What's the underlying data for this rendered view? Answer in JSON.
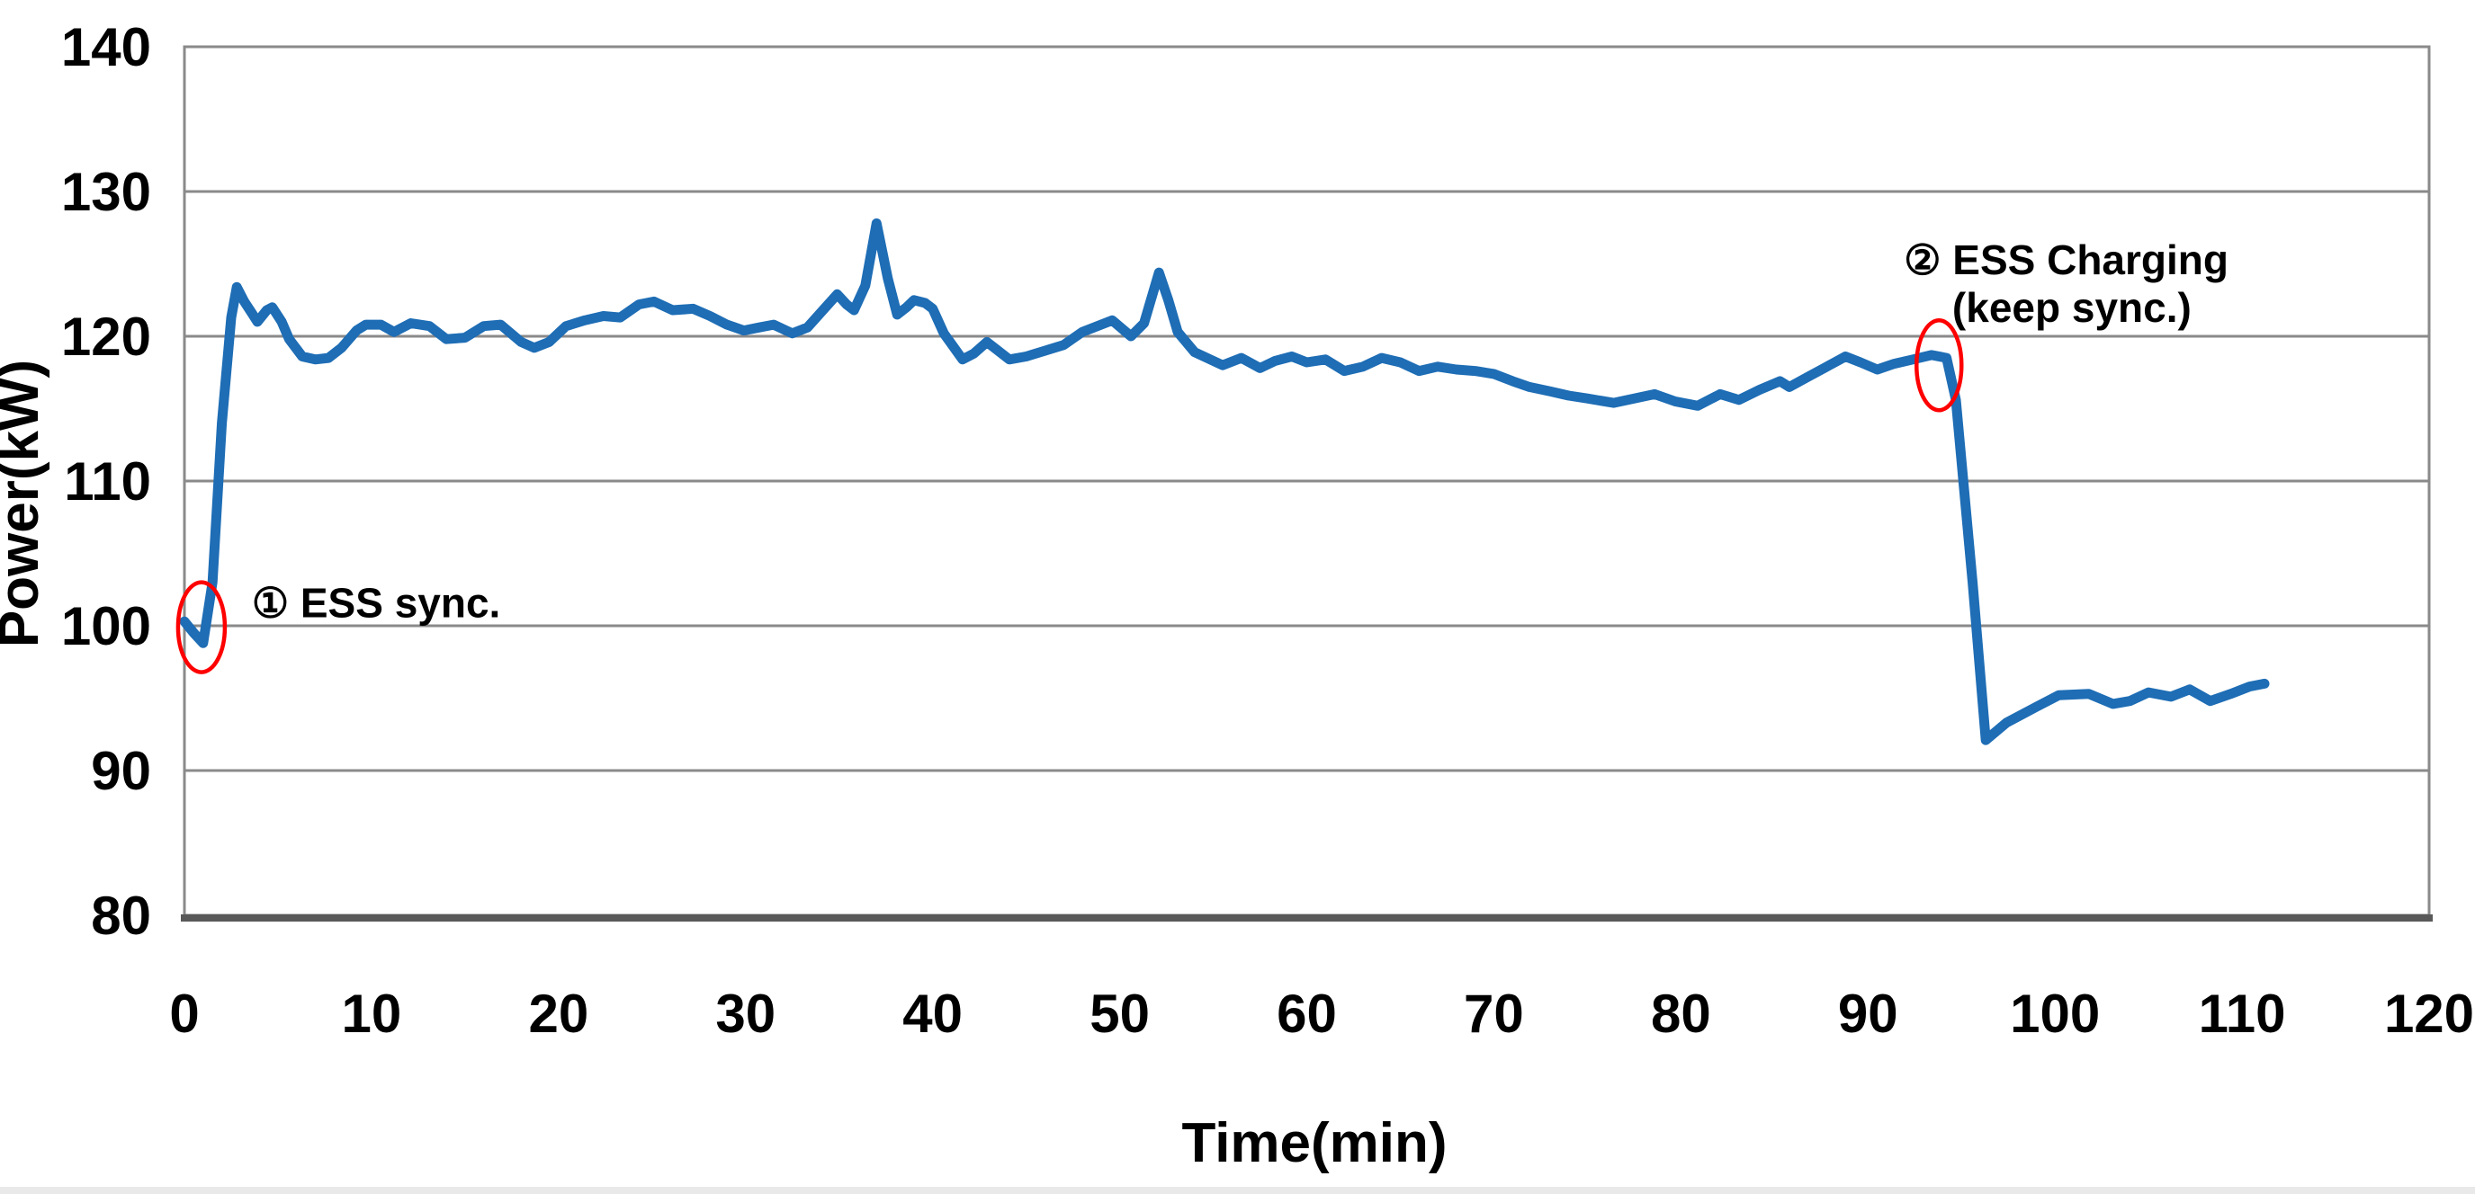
{
  "chart_data": {
    "type": "line",
    "title": "",
    "xlabel": "Time(min)",
    "ylabel": "Power(kW)",
    "xlim": [
      0,
      120
    ],
    "ylim": [
      80,
      140
    ],
    "xticks": [
      0,
      10,
      20,
      30,
      40,
      50,
      60,
      70,
      80,
      90,
      100,
      110,
      120
    ],
    "yticks": [
      80,
      90,
      100,
      110,
      120,
      130,
      140
    ],
    "grid": "horizontal",
    "legend": "none",
    "colors": {
      "line": "#1E6DB5",
      "grid": "#8a8a8a",
      "border": "#8a8a8a",
      "axis_bottom": "#595959",
      "annotation_red": "#FF0000",
      "text": "#000000"
    },
    "series": [
      {
        "name": "Power",
        "color": "#1E6DB5",
        "points": [
          [
            0,
            100.3
          ],
          [
            0.5,
            99.5
          ],
          [
            1,
            98.8
          ],
          [
            1.5,
            103
          ],
          [
            2,
            114
          ],
          [
            2.5,
            121.3
          ],
          [
            2.8,
            123.4
          ],
          [
            3.2,
            122.4
          ],
          [
            3.6,
            121.6
          ],
          [
            3.9,
            121.0
          ],
          [
            4.4,
            121.8
          ],
          [
            4.7,
            122.0
          ],
          [
            5.2,
            121.0
          ],
          [
            5.6,
            119.8
          ],
          [
            6.3,
            118.6
          ],
          [
            7,
            118.4
          ],
          [
            7.7,
            118.5
          ],
          [
            8.4,
            119.2
          ],
          [
            9.2,
            120.4
          ],
          [
            9.7,
            120.8
          ],
          [
            10.5,
            120.8
          ],
          [
            11.2,
            120.3
          ],
          [
            12.1,
            120.9
          ],
          [
            13.1,
            120.7
          ],
          [
            14,
            119.8
          ],
          [
            15,
            119.9
          ],
          [
            16,
            120.7
          ],
          [
            16.9,
            120.8
          ],
          [
            18,
            119.6
          ],
          [
            18.7,
            119.2
          ],
          [
            19.5,
            119.6
          ],
          [
            20.4,
            120.7
          ],
          [
            21.4,
            121.1
          ],
          [
            22.4,
            121.4
          ],
          [
            23.3,
            121.3
          ],
          [
            24.3,
            122.2
          ],
          [
            25.1,
            122.4
          ],
          [
            26.1,
            121.8
          ],
          [
            27.2,
            121.9
          ],
          [
            28.1,
            121.4
          ],
          [
            29,
            120.8
          ],
          [
            29.9,
            120.4
          ],
          [
            30.7,
            120.6
          ],
          [
            31.5,
            120.8
          ],
          [
            32.5,
            120.2
          ],
          [
            33.3,
            120.6
          ],
          [
            34.2,
            121.9
          ],
          [
            34.9,
            122.9
          ],
          [
            35.4,
            122.2
          ],
          [
            35.8,
            121.8
          ],
          [
            36.4,
            123.5
          ],
          [
            37,
            127.8
          ],
          [
            37.6,
            124.0
          ],
          [
            38.1,
            121.5
          ],
          [
            38.6,
            122.0
          ],
          [
            39,
            122.5
          ],
          [
            39.6,
            122.3
          ],
          [
            40,
            121.9
          ],
          [
            40.6,
            120.2
          ],
          [
            41.6,
            118.4
          ],
          [
            42.2,
            118.8
          ],
          [
            42.9,
            119.6
          ],
          [
            43.5,
            119.0
          ],
          [
            44.1,
            118.4
          ],
          [
            45,
            118.6
          ],
          [
            46,
            119.0
          ],
          [
            47,
            119.4
          ],
          [
            48,
            120.3
          ],
          [
            49,
            120.8
          ],
          [
            49.6,
            121.1
          ],
          [
            50.6,
            120.0
          ],
          [
            51.3,
            120.9
          ],
          [
            52.1,
            124.4
          ],
          [
            52.6,
            122.5
          ],
          [
            53.1,
            120.3
          ],
          [
            54,
            118.9
          ],
          [
            55.5,
            118.0
          ],
          [
            56.5,
            118.5
          ],
          [
            57.5,
            117.8
          ],
          [
            58.3,
            118.3
          ],
          [
            59.2,
            118.6
          ],
          [
            60,
            118.2
          ],
          [
            61,
            118.4
          ],
          [
            62,
            117.6
          ],
          [
            63,
            117.9
          ],
          [
            64,
            118.5
          ],
          [
            65,
            118.2
          ],
          [
            66,
            117.6
          ],
          [
            67,
            117.9
          ],
          [
            68,
            117.7
          ],
          [
            69,
            117.6
          ],
          [
            70,
            117.4
          ],
          [
            71,
            116.9
          ],
          [
            71.9,
            116.5
          ],
          [
            73,
            116.2
          ],
          [
            74,
            115.9
          ],
          [
            75,
            115.7
          ],
          [
            76.4,
            115.4
          ],
          [
            77.5,
            115.7
          ],
          [
            78.6,
            116.0
          ],
          [
            79.7,
            115.5
          ],
          [
            80.9,
            115.2
          ],
          [
            82.1,
            116.0
          ],
          [
            83.1,
            115.6
          ],
          [
            84.2,
            116.3
          ],
          [
            85.3,
            116.9
          ],
          [
            85.8,
            116.5
          ],
          [
            86.8,
            117.2
          ],
          [
            87.8,
            117.9
          ],
          [
            88.8,
            118.6
          ],
          [
            89.6,
            118.2
          ],
          [
            90.5,
            117.7
          ],
          [
            91.4,
            118.1
          ],
          [
            92.4,
            118.4
          ],
          [
            93.4,
            118.7
          ],
          [
            94.2,
            118.5
          ],
          [
            94.7,
            115.6
          ],
          [
            95.6,
            102.9
          ],
          [
            96.3,
            92.1
          ],
          [
            97.4,
            93.3
          ],
          [
            99,
            94.4
          ],
          [
            100.2,
            95.2
          ],
          [
            101.8,
            95.3
          ],
          [
            103.1,
            94.6
          ],
          [
            104,
            94.8
          ],
          [
            105,
            95.4
          ],
          [
            106.2,
            95.1
          ],
          [
            107.2,
            95.6
          ],
          [
            108.3,
            94.8
          ],
          [
            109.4,
            95.3
          ],
          [
            110.4,
            95.8
          ],
          [
            111.2,
            96.0
          ]
        ]
      }
    ],
    "annotations": [
      {
        "text": "① ESS sync.",
        "t": 3.6,
        "v": 100.6,
        "anchor": "start"
      },
      {
        "text": "② ESS Charging",
        "t": 100.6,
        "v": 124.3,
        "anchor": "middle"
      },
      {
        "text": "(keep sync.)",
        "t": 100.9,
        "v": 121.0,
        "anchor": "middle"
      }
    ],
    "markers": [
      {
        "name": "ess-sync-ellipse",
        "t": 0.91,
        "v": 99.9,
        "rx": 26,
        "ry": 50
      },
      {
        "name": "ess-charging-ellipse",
        "t": 93.8,
        "v": 118.0,
        "rx": 25,
        "ry": 50
      }
    ]
  }
}
